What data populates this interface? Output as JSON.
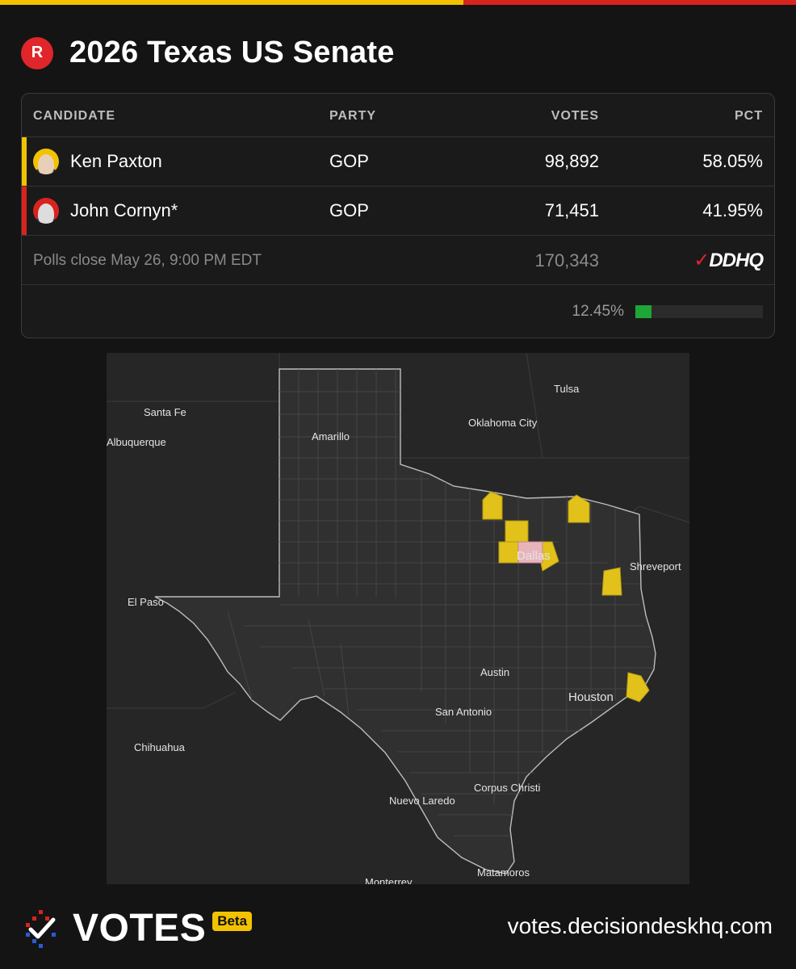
{
  "header": {
    "party_badge": "R",
    "title": "2026 Texas US Senate"
  },
  "table": {
    "columns": [
      "CANDIDATE",
      "PARTY",
      "VOTES",
      "PCT"
    ],
    "candidates": [
      {
        "name": "Ken Paxton",
        "party": "GOP",
        "votes": "98,892",
        "pct": "58.05%",
        "color": "#f2c200"
      },
      {
        "name": "John Cornyn*",
        "party": "GOP",
        "votes": "71,451",
        "pct": "41.95%",
        "color": "#d9231f"
      }
    ],
    "polls_close": "Polls close May 26, 9:00 PM EDT",
    "total_votes": "170,343",
    "source_logo": "DDHQ",
    "reporting_pct": "12.45%",
    "reporting_fraction": 0.1245
  },
  "map": {
    "labels": [
      "Tulsa",
      "Santa Fe",
      "Oklahoma City",
      "Albuquerque",
      "Amarillo",
      "Dallas",
      "Shreveport",
      "El Paso",
      "Austin",
      "Houston",
      "San Antonio",
      "Chihuahua",
      "Corpus Christi",
      "Nuevo Laredo",
      "Matamoros",
      "Monterrey"
    ],
    "colors": {
      "paxton": "#e2c21a",
      "cornyn": "#e8b4bc",
      "background": "#262626",
      "state_fill": "#333333",
      "county_line": "#4a4a4a"
    }
  },
  "footer": {
    "brand": "VOTES",
    "beta": "Beta",
    "url": "votes.decisiondeskhq.com"
  }
}
